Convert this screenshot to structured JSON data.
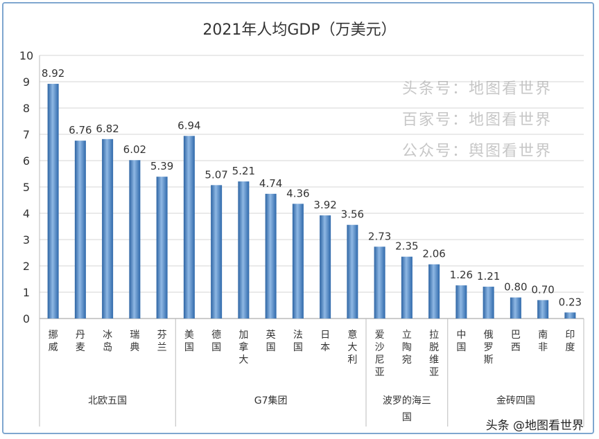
{
  "chart_data": {
    "type": "bar",
    "title": "2021年人均GDP（万美元）",
    "ylim": [
      0,
      10
    ],
    "yticks": [
      0,
      1,
      2,
      3,
      4,
      5,
      6,
      7,
      8,
      9,
      10
    ],
    "grid": true,
    "bar_color": "#3e7cc0",
    "categories": [
      "挪威",
      "丹麦",
      "冰岛",
      "瑞典",
      "芬兰",
      "美国",
      "德国",
      "加拿大",
      "英国",
      "法国",
      "日本",
      "意大利",
      "爱沙尼亚",
      "立陶宛",
      "拉脱维亚",
      "中国",
      "俄罗斯",
      "巴西",
      "南非",
      "印度"
    ],
    "values": [
      8.92,
      6.76,
      6.82,
      6.02,
      5.39,
      6.94,
      5.07,
      5.21,
      4.74,
      4.36,
      3.92,
      3.56,
      2.73,
      2.35,
      2.06,
      1.26,
      1.21,
      0.8,
      0.7,
      0.23
    ],
    "data_labels": [
      "8.92",
      "6.76",
      "6.82",
      "6.02",
      "5.39",
      "6.94",
      "5.07",
      "5.21",
      "4.74",
      "4.36",
      "3.92",
      "3.56",
      "2.73",
      "2.35",
      "2.06",
      "1.26",
      "1.21",
      "0.80",
      "0.70",
      "0.23"
    ],
    "groups": [
      {
        "label": "北欧五国",
        "count": 5
      },
      {
        "label": "G7集团",
        "count": 7
      },
      {
        "label": "波罗的海三国",
        "count": 3
      },
      {
        "label": "金砖四国",
        "count": 5
      }
    ]
  },
  "watermarks": [
    "头条号：地图看世界",
    "百家号：地图看世界",
    "公众号：舆图看世界"
  ],
  "credit": "头条 @地图看世界"
}
